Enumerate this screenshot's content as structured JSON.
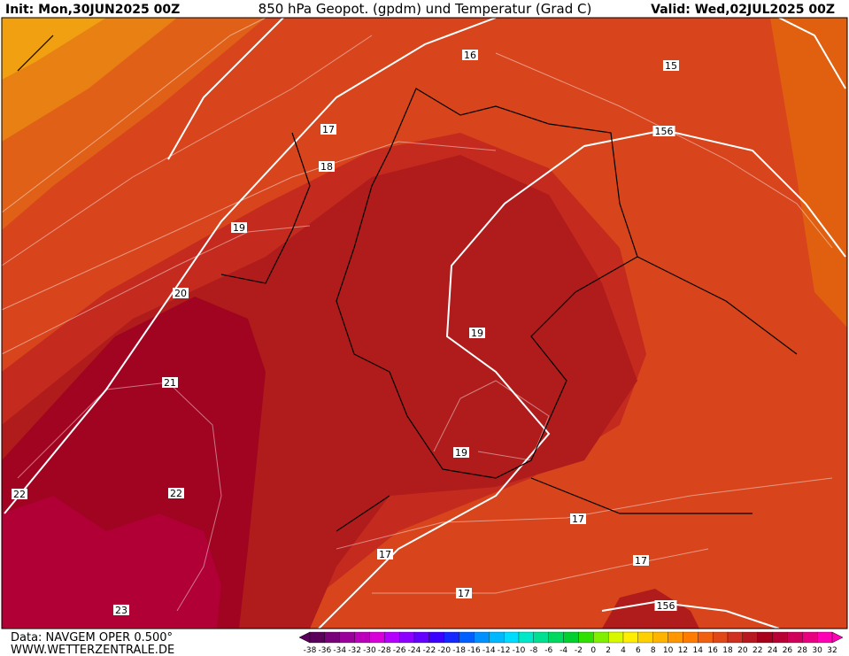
{
  "header": {
    "init": "Init: Mon,30JUN2025 00Z",
    "title": "850 hPa Geopot. (gpdm) und Temperatur (Grad C)",
    "valid": "Valid: Wed,02JUL2025 00Z"
  },
  "map": {
    "labels": [
      "16",
      "15",
      "17",
      "156",
      "18",
      "19",
      "20",
      "21",
      "22",
      "22",
      "23",
      "19",
      "19",
      "17",
      "17",
      "17",
      "17",
      "156"
    ]
  },
  "footer": {
    "data": "Data: NAVGEM OPER 0.500°",
    "site": "WWW.WETTERZENTRALE.DE"
  },
  "colorbar": {
    "ticks": [
      -38,
      -36,
      -34,
      -32,
      -30,
      -28,
      -26,
      -24,
      -22,
      -20,
      -18,
      -16,
      -14,
      -12,
      -10,
      -8,
      -6,
      -4,
      -2,
      0,
      2,
      4,
      6,
      8,
      10,
      12,
      14,
      16,
      18,
      20,
      22,
      24,
      26,
      28,
      30,
      32
    ],
    "colors": [
      "#5a005a",
      "#780078",
      "#9a009a",
      "#bb00bb",
      "#d800d8",
      "#b400ff",
      "#8c00ff",
      "#6400ff",
      "#3c00ff",
      "#1428ff",
      "#0060ff",
      "#0090ff",
      "#00b8ff",
      "#00dcff",
      "#00e8c8",
      "#00e090",
      "#00d860",
      "#00d030",
      "#30e000",
      "#80f000",
      "#d8f800",
      "#ffee00",
      "#ffd000",
      "#ffb400",
      "#ff9800",
      "#ff7c00",
      "#f06010",
      "#e04818",
      "#d03020",
      "#b81820",
      "#a8001c",
      "#b80034",
      "#d0005a",
      "#e80080",
      "#ff00b4"
    ]
  }
}
